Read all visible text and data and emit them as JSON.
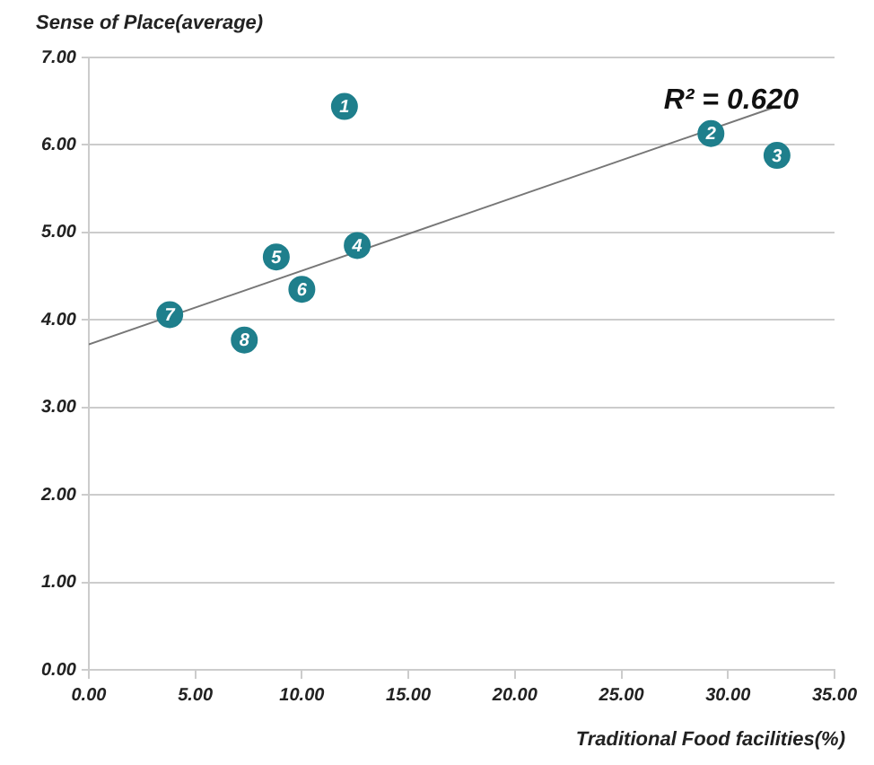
{
  "chart_data": {
    "type": "scatter",
    "xlabel": "Traditional Food facilities(%)",
    "ylabel": "Sense of Place(average)",
    "xlim": [
      0,
      35
    ],
    "xticks": [
      {
        "value": 0,
        "label": "0.00"
      },
      {
        "value": 5,
        "label": "5.00"
      },
      {
        "value": 10,
        "label": "10.00"
      },
      {
        "value": 15,
        "label": "15.00"
      },
      {
        "value": 20,
        "label": "20.00"
      },
      {
        "value": 25,
        "label": "25.00"
      },
      {
        "value": 30,
        "label": "30.00"
      },
      {
        "value": 35,
        "label": "35.00"
      }
    ],
    "ylim": [
      0,
      7
    ],
    "yticks": [
      {
        "value": 0,
        "label": "0.00"
      },
      {
        "value": 1,
        "label": "1.00"
      },
      {
        "value": 2,
        "label": "2.00"
      },
      {
        "value": 3,
        "label": "3.00"
      },
      {
        "value": 4,
        "label": "4.00"
      },
      {
        "value": 5,
        "label": "5.00"
      },
      {
        "value": 6,
        "label": "6.00"
      },
      {
        "value": 7,
        "label": "7.00"
      }
    ],
    "grid": "y",
    "legend": false,
    "marker": "circle",
    "series": [
      {
        "color": "#1f7f8c",
        "x": [
          12.0,
          29.2,
          32.3,
          12.6,
          8.8,
          10.0,
          3.8,
          7.3
        ],
        "values": [
          6.44,
          6.13,
          5.88,
          4.85,
          4.72,
          4.35,
          4.06,
          3.77
        ]
      },
      {
        "type": "line",
        "color": "#777777",
        "marker": "none",
        "x": [
          0,
          32.3
        ],
        "values": [
          3.72,
          6.44
        ]
      }
    ],
    "annotations": [
      "R² = 0.620",
      {
        "text": "1",
        "x": 12.0,
        "y": 6.44
      },
      {
        "text": "2",
        "x": 29.2,
        "y": 6.13
      },
      {
        "text": "3",
        "x": 32.3,
        "y": 5.88
      },
      {
        "text": "4",
        "x": 12.6,
        "y": 4.85
      },
      {
        "text": "5",
        "x": 8.8,
        "y": 4.72
      },
      {
        "text": "6",
        "x": 10.0,
        "y": 4.35
      },
      {
        "text": "7",
        "x": 3.8,
        "y": 4.06
      },
      {
        "text": "8",
        "x": 7.3,
        "y": 3.77
      }
    ]
  }
}
